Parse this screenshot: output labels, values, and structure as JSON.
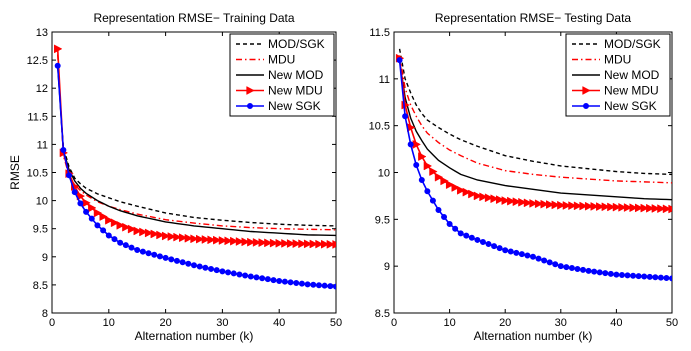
{
  "chart_data": [
    {
      "type": "line",
      "title": "Representation RMSE− Training Data",
      "xlabel": "Alternation number (k)",
      "ylabel": "RMSE",
      "xlim": [
        0,
        50
      ],
      "ylim": [
        8,
        13
      ],
      "xticks": [
        "0",
        "10",
        "20",
        "30",
        "40",
        "50"
      ],
      "yticks": [
        "8",
        "8.5",
        "9",
        "9.5",
        "10",
        "10.5",
        "11",
        "11.5",
        "12",
        "12.5",
        "13"
      ],
      "grid": false,
      "legend_position": "top-right",
      "series": [
        {
          "name": "MOD/SGK",
          "color": "#000000",
          "dash": "dashed",
          "marker": "none",
          "x": [
            1,
            2,
            3,
            4,
            5,
            6,
            8,
            10,
            12,
            15,
            20,
            25,
            30,
            35,
            40,
            45,
            50
          ],
          "y": [
            12.4,
            10.95,
            10.6,
            10.4,
            10.3,
            10.22,
            10.12,
            10.05,
            9.98,
            9.9,
            9.78,
            9.7,
            9.65,
            9.61,
            9.58,
            9.56,
            9.55
          ]
        },
        {
          "name": "MDU",
          "color": "#ff0000",
          "dash": "dashdot",
          "marker": "none",
          "x": [
            1,
            2,
            3,
            4,
            5,
            6,
            8,
            10,
            12,
            15,
            20,
            25,
            30,
            35,
            40,
            45,
            50
          ],
          "y": [
            12.6,
            10.8,
            10.45,
            10.28,
            10.18,
            10.1,
            9.98,
            9.9,
            9.84,
            9.76,
            9.66,
            9.6,
            9.55,
            9.52,
            9.5,
            9.49,
            9.48
          ]
        },
        {
          "name": "New MOD",
          "color": "#000000",
          "dash": "solid",
          "marker": "none",
          "x": [
            1,
            2,
            3,
            4,
            5,
            6,
            8,
            10,
            12,
            15,
            20,
            25,
            30,
            35,
            40,
            45,
            50
          ],
          "y": [
            12.4,
            10.9,
            10.55,
            10.35,
            10.22,
            10.13,
            10.0,
            9.9,
            9.82,
            9.73,
            9.62,
            9.55,
            9.5,
            9.45,
            9.42,
            9.39,
            9.38
          ]
        },
        {
          "name": "New MDU",
          "color": "#ff0000",
          "dash": "solid",
          "marker": "triangle-right",
          "x": [
            1,
            2,
            3,
            4,
            5,
            6,
            8,
            10,
            12,
            15,
            20,
            25,
            30,
            35,
            40,
            45,
            50
          ],
          "y": [
            12.7,
            10.85,
            10.48,
            10.25,
            10.08,
            9.96,
            9.78,
            9.65,
            9.56,
            9.46,
            9.37,
            9.32,
            9.29,
            9.26,
            9.24,
            9.23,
            9.22
          ]
        },
        {
          "name": "New SGK",
          "color": "#0000ff",
          "dash": "solid",
          "marker": "circle",
          "x": [
            1,
            2,
            3,
            4,
            5,
            6,
            8,
            10,
            12,
            15,
            20,
            25,
            30,
            35,
            40,
            45,
            50
          ],
          "y": [
            12.4,
            10.9,
            10.45,
            10.15,
            9.95,
            9.8,
            9.56,
            9.38,
            9.25,
            9.12,
            8.98,
            8.85,
            8.74,
            8.65,
            8.57,
            8.51,
            8.47
          ]
        }
      ]
    },
    {
      "type": "line",
      "title": "Representation RMSE− Testing Data",
      "xlabel": "Alternation number (k)",
      "ylabel": "",
      "xlim": [
        0,
        50
      ],
      "ylim": [
        8.5,
        11.5
      ],
      "xticks": [
        "0",
        "10",
        "20",
        "30",
        "40",
        "50"
      ],
      "yticks": [
        "8.5",
        "9",
        "9.5",
        "10",
        "10.5",
        "11",
        "11.5"
      ],
      "grid": false,
      "legend_position": "top-right",
      "series": [
        {
          "name": "MOD/SGK",
          "color": "#000000",
          "dash": "dashed",
          "marker": "none",
          "x": [
            1,
            2,
            3,
            4,
            5,
            6,
            8,
            10,
            12,
            15,
            20,
            25,
            30,
            35,
            40,
            45,
            50
          ],
          "y": [
            11.32,
            11.0,
            10.85,
            10.72,
            10.63,
            10.56,
            10.48,
            10.41,
            10.35,
            10.28,
            10.18,
            10.12,
            10.07,
            10.04,
            10.01,
            9.99,
            9.98
          ]
        },
        {
          "name": "MDU",
          "color": "#ff0000",
          "dash": "dashdot",
          "marker": "none",
          "x": [
            1,
            2,
            3,
            4,
            5,
            6,
            8,
            10,
            12,
            15,
            20,
            25,
            30,
            35,
            40,
            45,
            50
          ],
          "y": [
            11.25,
            10.9,
            10.72,
            10.6,
            10.5,
            10.42,
            10.32,
            10.24,
            10.18,
            10.1,
            10.02,
            9.98,
            9.95,
            9.93,
            9.91,
            9.9,
            9.89
          ]
        },
        {
          "name": "New MOD",
          "color": "#000000",
          "dash": "solid",
          "marker": "none",
          "x": [
            1,
            2,
            3,
            4,
            5,
            6,
            8,
            10,
            12,
            15,
            20,
            25,
            30,
            35,
            40,
            45,
            50
          ],
          "y": [
            11.2,
            10.8,
            10.58,
            10.44,
            10.34,
            10.25,
            10.13,
            10.05,
            9.98,
            9.92,
            9.86,
            9.82,
            9.78,
            9.76,
            9.74,
            9.72,
            9.71
          ]
        },
        {
          "name": "New MDU",
          "color": "#ff0000",
          "dash": "solid",
          "marker": "triangle-right",
          "x": [
            1,
            2,
            3,
            4,
            5,
            6,
            8,
            10,
            12,
            15,
            20,
            25,
            30,
            35,
            40,
            45,
            50
          ],
          "y": [
            11.22,
            10.72,
            10.48,
            10.3,
            10.17,
            10.07,
            9.95,
            9.87,
            9.81,
            9.75,
            9.7,
            9.67,
            9.65,
            9.64,
            9.63,
            9.62,
            9.61
          ]
        },
        {
          "name": "New SGK",
          "color": "#0000ff",
          "dash": "solid",
          "marker": "circle",
          "x": [
            1,
            2,
            3,
            4,
            5,
            6,
            8,
            10,
            12,
            15,
            20,
            25,
            30,
            35,
            40,
            45,
            50
          ],
          "y": [
            11.2,
            10.6,
            10.3,
            10.08,
            9.92,
            9.8,
            9.6,
            9.45,
            9.35,
            9.28,
            9.17,
            9.1,
            9.0,
            8.95,
            8.91,
            8.89,
            8.87
          ]
        }
      ]
    }
  ]
}
